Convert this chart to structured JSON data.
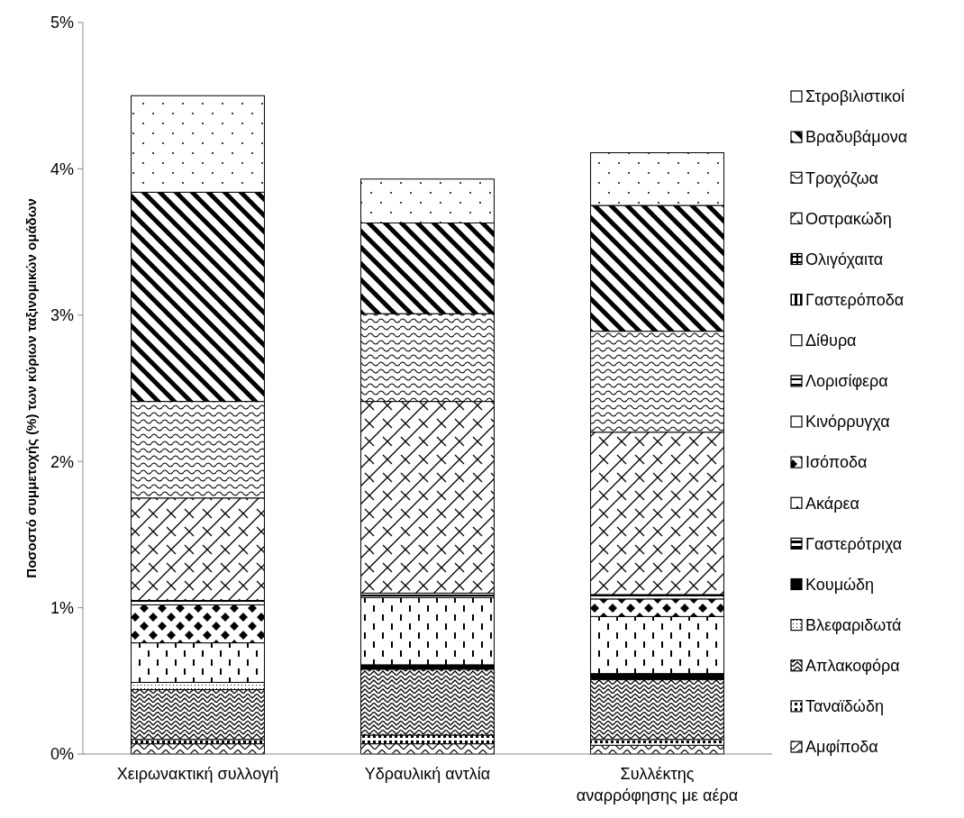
{
  "chart_data": {
    "type": "bar",
    "stacked": true,
    "ylabel": "Ποσοστό συμμετοχής (%) των κύριων ταξινομικών ομάδων",
    "categories": [
      "Χειρωνακτική συλλογή",
      "Υδραυλική αντλία",
      "Συλλέκτης αναρρόφησης με αέρα"
    ],
    "ylim": [
      0,
      5
    ],
    "yticks": [
      {
        "value": 0,
        "label": "0%"
      },
      {
        "value": 1,
        "label": "1%"
      },
      {
        "value": 2,
        "label": "2%"
      },
      {
        "value": 3,
        "label": "3%"
      },
      {
        "value": 4,
        "label": "4%"
      },
      {
        "value": 5,
        "label": "5%"
      }
    ],
    "grid": false,
    "legend": "right",
    "series": [
      {
        "name": "Αμφίποδα",
        "color": "#000000",
        "values": [
          0.07,
          0.07,
          0.06
        ]
      },
      {
        "name": "Ταναϊδώδη",
        "color": "#000000",
        "values": [
          0.03,
          0.06,
          0.04
        ]
      },
      {
        "name": "Απλακοφόρα",
        "color": "#000000",
        "values": [
          0.34,
          0.45,
          0.41
        ]
      },
      {
        "name": "Βλεφαριδωτά",
        "color": "#000000",
        "values": [
          0.05,
          0,
          0
        ]
      },
      {
        "name": "Κουμώδη",
        "color": "#000000",
        "values": [
          0,
          0.03,
          0.04
        ]
      },
      {
        "name": "Γαστερότριχα",
        "color": "#000000",
        "values": [
          0,
          0,
          0
        ]
      },
      {
        "name": "Ακάρεα",
        "color": "#000000",
        "values": [
          0.27,
          0.46,
          0.39
        ]
      },
      {
        "name": "Ισόποδα",
        "color": "#000000",
        "values": [
          0.26,
          0,
          0.12
        ]
      },
      {
        "name": "Κινόρρυγχα",
        "color": "#000000",
        "values": [
          0,
          0,
          0
        ]
      },
      {
        "name": "Λορισίφερα",
        "color": "#000000",
        "values": [
          0.03,
          0.03,
          0.03
        ]
      },
      {
        "name": "Δίθυρα",
        "color": "#000000",
        "values": [
          0,
          0,
          0
        ]
      },
      {
        "name": "Γαστερόποδα",
        "color": "#000000",
        "values": [
          0,
          0,
          0
        ]
      },
      {
        "name": "Ολιγόχαιτα",
        "color": "#000000",
        "values": [
          0,
          0,
          0
        ]
      },
      {
        "name": "Οστρακώδη",
        "color": "#000000",
        "values": [
          0.7,
          1.31,
          1.11
        ]
      },
      {
        "name": "Τροχόζωα",
        "color": "#000000",
        "values": [
          0.66,
          0.6,
          0.69
        ]
      },
      {
        "name": "Βραδυβάμονα",
        "color": "#000000",
        "values": [
          1.43,
          0.62,
          0.86
        ]
      },
      {
        "name": "Στροβιλιστικοί",
        "color": "#000000",
        "values": [
          0.66,
          0.3,
          0.36
        ]
      }
    ]
  }
}
